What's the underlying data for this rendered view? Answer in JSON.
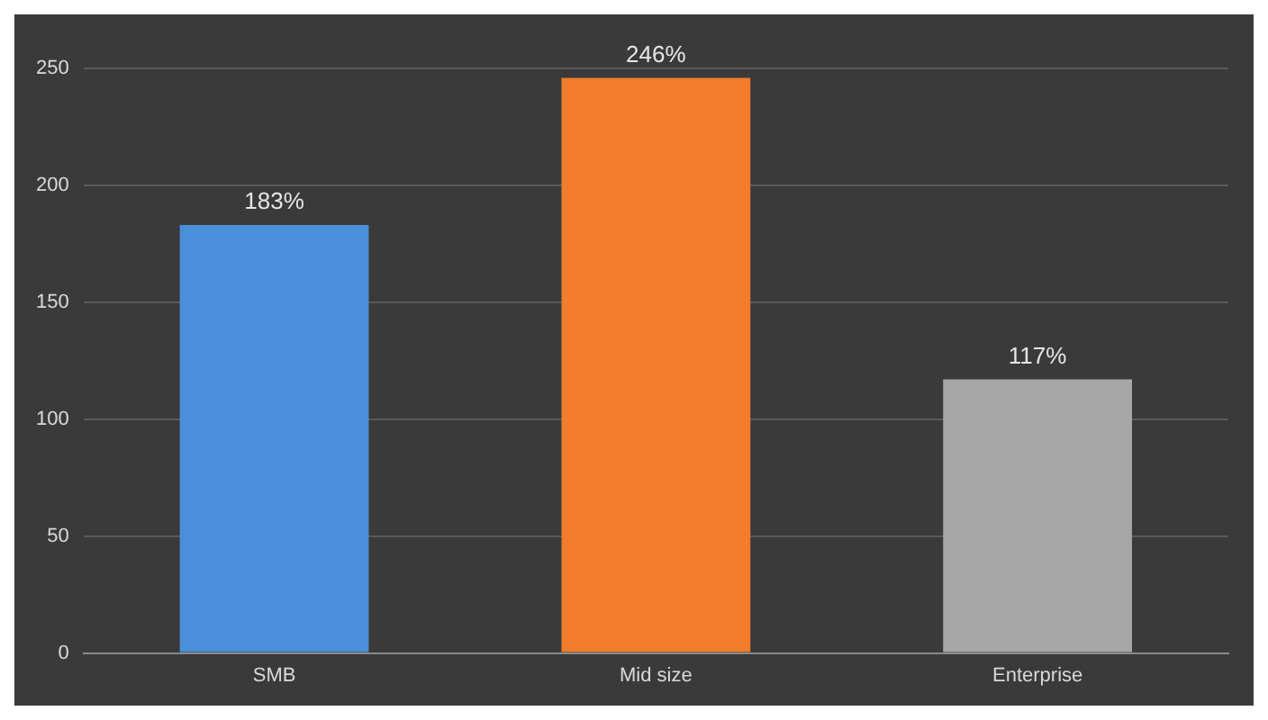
{
  "chart_data": {
    "type": "bar",
    "categories": [
      "SMB",
      "Mid size",
      "Enterprise"
    ],
    "values": [
      183,
      246,
      117
    ],
    "colors": [
      "#4a90d9",
      "#f07c2c",
      "#a6a6a6"
    ],
    "value_labels": [
      "183%",
      "246%",
      "117%"
    ],
    "ylim": [
      0,
      250
    ],
    "yticks": [
      0,
      50,
      100,
      150,
      200,
      250
    ],
    "grid": "y"
  }
}
